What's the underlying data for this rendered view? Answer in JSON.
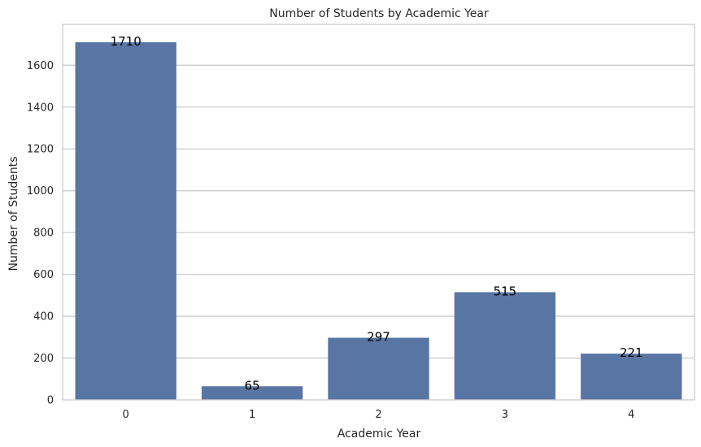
{
  "chart_data": {
    "type": "bar",
    "title": "Number of Students by Academic Year",
    "xlabel": "Academic Year",
    "ylabel": "Number of Students",
    "categories": [
      "0",
      "1",
      "2",
      "3",
      "4"
    ],
    "values": [
      1710,
      65,
      297,
      515,
      221
    ],
    "value_labels": [
      "1710",
      "65",
      "297",
      "515",
      "221"
    ],
    "ylim": [
      0,
      1795.5
    ],
    "yticks": [
      0,
      200,
      400,
      600,
      800,
      1000,
      1200,
      1400,
      1600
    ],
    "ytick_labels": [
      "0",
      "200",
      "400",
      "600",
      "800",
      "1000",
      "1200",
      "1400",
      "1600"
    ],
    "grid": true,
    "bar_color": "#5975a4",
    "grid_color": "#cccccc",
    "spine_color": "#cccccc"
  }
}
